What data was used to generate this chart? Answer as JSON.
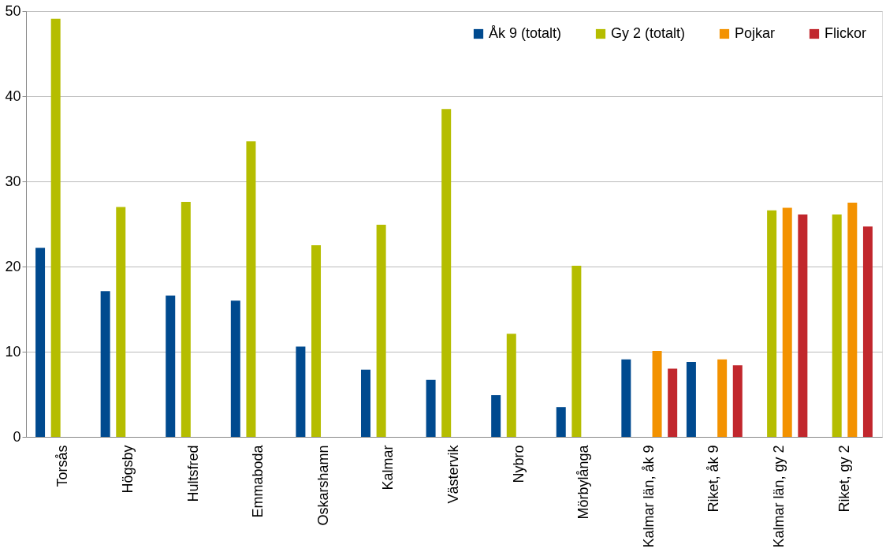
{
  "chart_data": {
    "type": "bar",
    "categories": [
      "Torsås",
      "Högsby",
      "Hultsfred",
      "Emmaboda",
      "Oskarshamn",
      "Kalmar",
      "Västervik",
      "Nybro",
      "Mörbylånga",
      "Kalmar län, åk 9",
      "Riket, åk 9",
      "Kalmar län, gy 2",
      "Riket, gy 2"
    ],
    "series": [
      {
        "name": "Åk 9 (totalt)",
        "color": "#004a8f",
        "values": [
          22.2,
          17.1,
          16.6,
          16.0,
          10.6,
          7.9,
          6.7,
          4.9,
          3.5,
          9.1,
          8.8,
          null,
          null
        ]
      },
      {
        "name": "Gy 2 (totalt)",
        "color": "#b5bd00",
        "values": [
          49.1,
          27.0,
          27.6,
          34.7,
          22.5,
          24.9,
          38.5,
          12.1,
          20.1,
          null,
          null,
          26.6,
          26.1
        ]
      },
      {
        "name": "Pojkar",
        "color": "#f39200",
        "values": [
          null,
          null,
          null,
          null,
          null,
          null,
          null,
          null,
          null,
          10.1,
          9.1,
          26.9,
          27.5
        ]
      },
      {
        "name": "Flickor",
        "color": "#c1272d",
        "values": [
          null,
          null,
          null,
          null,
          null,
          null,
          null,
          null,
          null,
          8.0,
          8.4,
          26.1,
          24.7
        ]
      }
    ],
    "ylim": [
      0,
      50
    ],
    "yticks": [
      0,
      10,
      20,
      30,
      40,
      50
    ],
    "grid": "y",
    "legend": "top right"
  }
}
